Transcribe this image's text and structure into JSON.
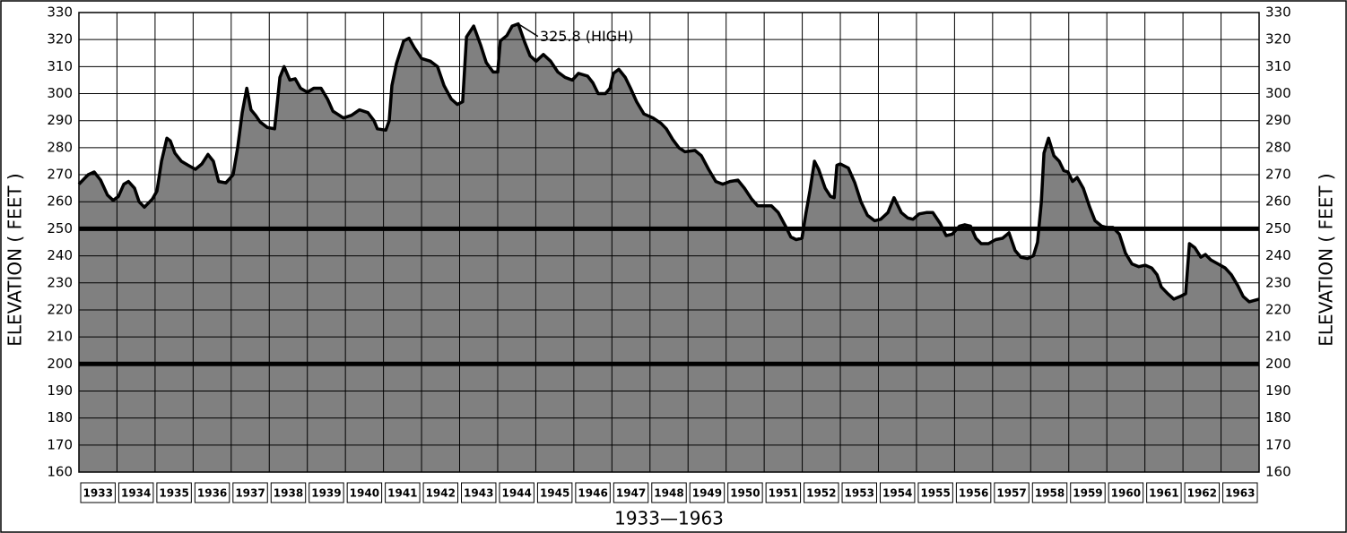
{
  "chart_data": {
    "type": "area",
    "y_axis_label": "ELEVATION ( FEET )",
    "x_axis_label": "1933—1963",
    "color": "#808080",
    "line_color": "#000000",
    "grid": true,
    "xlim": [
      1933,
      1964
    ],
    "ylim": [
      160,
      330
    ],
    "y2lim": [
      160,
      330
    ],
    "yticks": [
      160,
      170,
      180,
      190,
      200,
      210,
      220,
      230,
      240,
      250,
      260,
      270,
      280,
      290,
      300,
      310,
      320,
      330
    ],
    "y2ticks": [
      160,
      170,
      180,
      190,
      200,
      210,
      220,
      230,
      240,
      250,
      260,
      270,
      280,
      290,
      300,
      310,
      320,
      330
    ],
    "reference_lines": [
      200,
      250
    ],
    "xticks": [
      {
        "value": 1933.5,
        "label": "1933"
      },
      {
        "value": 1934.5,
        "label": "1934"
      },
      {
        "value": 1935.5,
        "label": "1935"
      },
      {
        "value": 1936.5,
        "label": "1936"
      },
      {
        "value": 1937.5,
        "label": "1937"
      },
      {
        "value": 1938.5,
        "label": "1938"
      },
      {
        "value": 1939.5,
        "label": "1939"
      },
      {
        "value": 1940.5,
        "label": "1940"
      },
      {
        "value": 1941.5,
        "label": "1941"
      },
      {
        "value": 1942.5,
        "label": "1942"
      },
      {
        "value": 1943.5,
        "label": "1943"
      },
      {
        "value": 1944.5,
        "label": "1944"
      },
      {
        "value": 1945.5,
        "label": "1945"
      },
      {
        "value": 1946.5,
        "label": "1946"
      },
      {
        "value": 1947.5,
        "label": "1947"
      },
      {
        "value": 1948.5,
        "label": "1948"
      },
      {
        "value": 1949.5,
        "label": "1949"
      },
      {
        "value": 1950.5,
        "label": "1950"
      },
      {
        "value": 1951.5,
        "label": "1951"
      },
      {
        "value": 1952.5,
        "label": "1952"
      },
      {
        "value": 1953.5,
        "label": "1953"
      },
      {
        "value": 1954.5,
        "label": "1954"
      },
      {
        "value": 1955.5,
        "label": "1955"
      },
      {
        "value": 1956.5,
        "label": "1956"
      },
      {
        "value": 1957.5,
        "label": "1957"
      },
      {
        "value": 1958.5,
        "label": "1958"
      },
      {
        "value": 1959.5,
        "label": "1959"
      },
      {
        "value": 1960.5,
        "label": "1960"
      },
      {
        "value": 1961.5,
        "label": "1961"
      },
      {
        "value": 1962.5,
        "label": "1962"
      },
      {
        "value": 1963.5,
        "label": "1963"
      }
    ],
    "annotation": {
      "text": "325.8 (HIGH)",
      "x": 1944.54,
      "y": 325.8
    },
    "x": [
      1933.0,
      1933.24,
      1933.4,
      1933.57,
      1933.75,
      1933.9,
      1934.04,
      1934.18,
      1934.3,
      1934.46,
      1934.58,
      1934.72,
      1934.93,
      1935.05,
      1935.17,
      1935.31,
      1935.4,
      1935.52,
      1935.69,
      1935.87,
      1936.06,
      1936.23,
      1936.39,
      1936.53,
      1936.67,
      1936.86,
      1937.05,
      1937.17,
      1937.29,
      1937.41,
      1937.52,
      1937.64,
      1937.76,
      1937.95,
      1938.14,
      1938.28,
      1938.39,
      1938.54,
      1938.68,
      1938.82,
      1939.0,
      1939.17,
      1939.36,
      1939.53,
      1939.67,
      1939.95,
      1940.16,
      1940.37,
      1940.59,
      1940.75,
      1940.84,
      1941.06,
      1941.15,
      1941.22,
      1941.34,
      1941.53,
      1941.67,
      1941.81,
      1942.0,
      1942.23,
      1942.42,
      1942.59,
      1942.78,
      1942.94,
      1943.08,
      1943.18,
      1943.37,
      1943.55,
      1943.7,
      1943.88,
      1944.0,
      1944.07,
      1944.24,
      1944.38,
      1944.54,
      1944.71,
      1944.85,
      1945.01,
      1945.2,
      1945.39,
      1945.58,
      1945.77,
      1945.96,
      1946.12,
      1946.36,
      1946.5,
      1946.64,
      1946.83,
      1946.95,
      1947.04,
      1947.18,
      1947.35,
      1947.49,
      1947.65,
      1947.84,
      1948.08,
      1948.29,
      1948.43,
      1948.6,
      1948.76,
      1948.92,
      1949.18,
      1949.35,
      1949.54,
      1949.73,
      1949.91,
      1950.1,
      1950.31,
      1950.48,
      1950.67,
      1950.83,
      1950.99,
      1951.19,
      1951.37,
      1951.56,
      1951.7,
      1951.84,
      1951.99,
      1952.1,
      1952.2,
      1952.32,
      1952.43,
      1952.6,
      1952.74,
      1952.84,
      1952.91,
      1953.0,
      1953.21,
      1953.38,
      1953.54,
      1953.71,
      1953.9,
      1954.06,
      1954.25,
      1954.41,
      1954.6,
      1954.77,
      1954.91,
      1955.07,
      1955.26,
      1955.43,
      1955.62,
      1955.78,
      1955.94,
      1956.13,
      1956.27,
      1956.42,
      1956.56,
      1956.7,
      1956.89,
      1957.08,
      1957.26,
      1957.43,
      1957.59,
      1957.74,
      1957.92,
      1958.07,
      1958.18,
      1958.28,
      1958.35,
      1958.47,
      1958.61,
      1958.75,
      1958.87,
      1958.98,
      1959.1,
      1959.22,
      1959.38,
      1959.55,
      1959.69,
      1959.86,
      1960.0,
      1960.16,
      1960.33,
      1960.49,
      1960.66,
      1960.84,
      1961.01,
      1961.18,
      1961.32,
      1961.43,
      1961.6,
      1961.76,
      1961.93,
      1962.07,
      1962.17,
      1962.31,
      1962.47,
      1962.59,
      1962.73,
      1962.92,
      1963.11,
      1963.27,
      1963.44,
      1963.58,
      1963.74,
      1964.0
    ],
    "values": [
      266.5,
      270,
      271,
      268,
      262.5,
      260.5,
      262,
      266.5,
      267.5,
      265,
      260,
      258,
      261,
      264,
      275,
      283.5,
      282.5,
      278,
      275,
      273.5,
      272,
      274,
      277.5,
      275,
      267.5,
      267,
      270,
      280,
      293,
      302,
      294,
      292,
      289.5,
      287.5,
      287,
      306,
      310,
      305,
      305.5,
      302,
      300.5,
      302,
      302,
      298,
      293.5,
      291,
      292,
      294,
      293,
      290,
      287,
      286.5,
      290,
      303,
      311,
      319.5,
      320.5,
      317,
      313,
      312,
      310,
      303,
      298,
      296,
      297,
      321,
      325,
      318,
      311.5,
      308,
      308,
      319.5,
      321.5,
      325,
      325.8,
      319,
      314,
      312,
      314.5,
      312,
      308,
      306,
      305,
      307.5,
      306.5,
      304,
      300,
      300,
      302,
      307.5,
      309,
      306,
      302,
      297,
      292.5,
      291,
      289,
      287,
      283,
      280,
      278.5,
      279,
      277,
      272,
      267.5,
      266.5,
      267.5,
      268,
      265,
      261,
      258.5,
      258.5,
      258.5,
      256,
      251,
      247,
      246,
      246.5,
      256,
      264,
      275,
      272,
      265,
      262,
      261.5,
      273.5,
      274,
      272.5,
      267,
      260,
      255,
      253,
      253.5,
      256,
      261.5,
      256,
      254,
      253.5,
      255.5,
      256,
      256,
      252,
      247.5,
      248,
      251,
      251.5,
      251,
      246.5,
      244.5,
      244.5,
      246,
      246.5,
      248.5,
      242,
      239.5,
      239,
      240,
      245,
      260,
      278,
      283.5,
      277,
      275,
      271.5,
      271,
      267.5,
      269,
      265,
      258,
      253,
      251,
      250.5,
      250.5,
      248,
      241,
      237,
      236,
      236.5,
      235.5,
      233,
      228.5,
      226,
      224,
      225,
      226,
      244.5,
      243,
      239.5,
      240.5,
      238.5,
      237,
      235.5,
      233,
      229,
      225,
      223,
      224
    ]
  }
}
